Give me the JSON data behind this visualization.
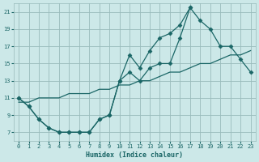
{
  "xlabel": "Humidex (Indice chaleur)",
  "bg_color": "#cce8e8",
  "grid_color": "#99bbbb",
  "line_color": "#1a6666",
  "xlim": [
    -0.5,
    23.5
  ],
  "ylim": [
    6.0,
    22.0
  ],
  "xticks": [
    0,
    1,
    2,
    3,
    4,
    5,
    6,
    7,
    8,
    9,
    10,
    11,
    12,
    13,
    14,
    15,
    16,
    17,
    18,
    19,
    20,
    21,
    22,
    23
  ],
  "yticks": [
    7,
    9,
    11,
    13,
    15,
    17,
    19,
    21
  ],
  "line1_x": [
    0,
    1,
    2,
    3,
    4,
    5,
    6,
    7,
    8,
    9,
    10,
    11,
    12,
    13,
    14,
    15,
    16,
    17
  ],
  "line1_y": [
    11,
    10,
    8.5,
    7.5,
    7,
    7,
    7,
    7,
    8.5,
    9,
    13,
    14,
    13,
    14.5,
    15,
    15,
    18,
    21.5
  ],
  "line2_x": [
    0,
    1,
    2,
    3,
    4,
    5,
    6,
    7,
    8,
    9,
    10,
    11,
    12,
    13,
    14,
    15,
    16,
    17,
    18,
    19,
    20,
    21,
    22,
    23
  ],
  "line2_y": [
    11,
    10,
    8.5,
    7.5,
    7,
    7,
    7,
    7,
    8.5,
    9,
    13,
    16,
    14.5,
    16.5,
    18,
    18.5,
    19.5,
    21.5,
    20,
    19,
    17,
    17,
    15.5,
    14
  ],
  "line3_x": [
    0,
    1,
    2,
    3,
    4,
    5,
    6,
    7,
    8,
    9,
    10,
    11,
    12,
    13,
    14,
    15,
    16,
    17,
    18,
    19,
    20,
    21,
    22,
    23
  ],
  "line3_y": [
    10.5,
    10.5,
    11,
    11,
    11,
    11.5,
    11.5,
    11.5,
    12,
    12,
    12.5,
    12.5,
    13,
    13,
    13.5,
    14,
    14,
    14.5,
    15,
    15,
    15.5,
    16,
    16,
    16.5
  ],
  "font_color": "#1a6666"
}
